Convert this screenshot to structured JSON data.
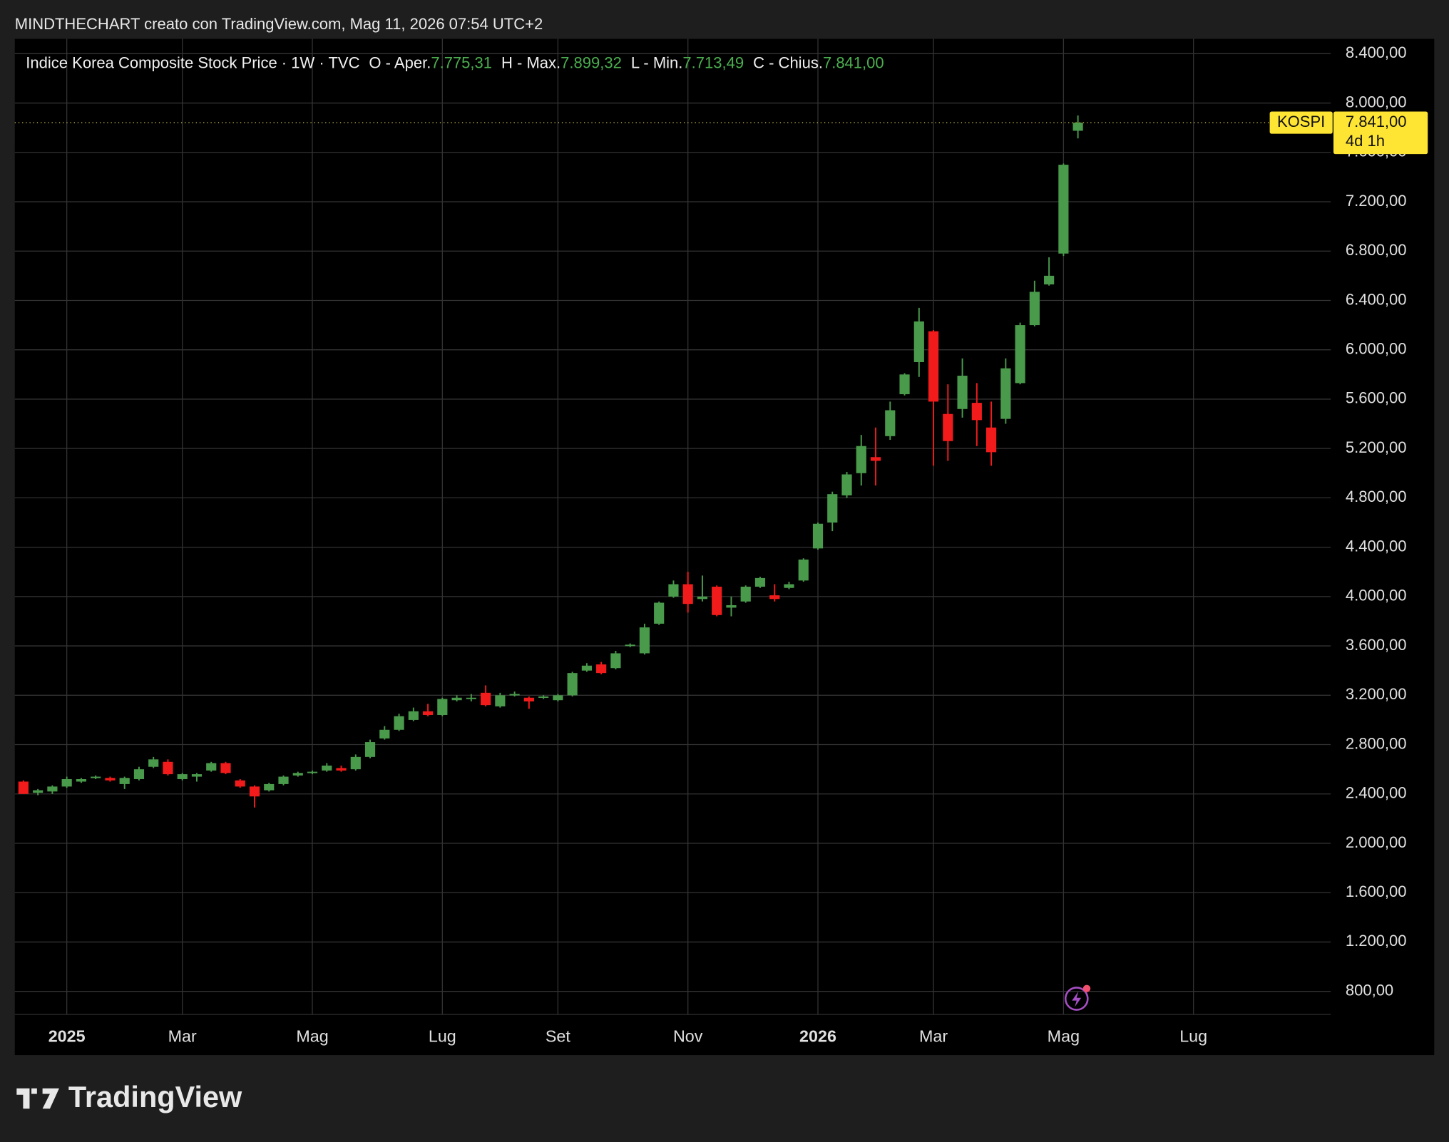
{
  "header": {
    "attribution": "MINDTHECHART creato con TradingView.com, Mag 11, 2026 07:54 UTC+2"
  },
  "footer": {
    "brand": "TradingView"
  },
  "chart_data": {
    "type": "candlestick",
    "title": "Indice Korea Composite Stock Price · 1W · TVC",
    "ohlc_names": [
      "O - Aper.",
      "H - Max.",
      "L - Min.",
      "C - Chius."
    ],
    "ohlc_value_labels": [
      "7.775,31",
      "7.899,32",
      "7.713,49",
      "7.841,00"
    ],
    "symbol": "KOSPI",
    "last_value_label": "7.841,00",
    "countdown": "4d 1h",
    "up_color": "#4a9a4c",
    "down_color": "#f21b1b",
    "open": [
      2500,
      2410,
      2420,
      2460,
      2500,
      2530,
      2530,
      2480,
      2520,
      2620,
      2660,
      2520,
      2540,
      2590,
      2650,
      2510,
      2460,
      2430,
      2480,
      2550,
      2570,
      2590,
      2610,
      2600,
      2700,
      2850,
      2920,
      3000,
      3070,
      3040,
      3160,
      3170,
      3220,
      3110,
      3200,
      3180,
      3180,
      3160,
      3200,
      3400,
      3450,
      3420,
      3600,
      3540,
      3780,
      4000,
      4100,
      3980,
      4080,
      3910,
      3960,
      4080,
      4010,
      4070,
      4130,
      4390,
      4600,
      4820,
      5000,
      5130,
      5300,
      5640,
      5900,
      6150,
      5480,
      5520,
      5570,
      5370,
      5440,
      5730,
      6200,
      6530,
      6780,
      7775.31
    ],
    "high": [
      2510,
      2440,
      2470,
      2540,
      2530,
      2550,
      2540,
      2540,
      2620,
      2700,
      2680,
      2570,
      2570,
      2660,
      2660,
      2520,
      2470,
      2490,
      2550,
      2580,
      2590,
      2650,
      2630,
      2720,
      2840,
      2950,
      3050,
      3100,
      3130,
      3180,
      3200,
      3210,
      3280,
      3220,
      3230,
      3190,
      3200,
      3210,
      3390,
      3460,
      3470,
      3560,
      3620,
      3780,
      3960,
      4130,
      4200,
      4170,
      4090,
      4000,
      4090,
      4160,
      4100,
      4120,
      4310,
      4600,
      4850,
      5010,
      5310,
      5370,
      5580,
      5810,
      6340,
      6160,
      5720,
      5930,
      5730,
      5580,
      5930,
      6220,
      6560,
      6750,
      7510,
      7899.32
    ],
    "low": [
      2400,
      2390,
      2400,
      2450,
      2490,
      2520,
      2500,
      2440,
      2510,
      2610,
      2550,
      2510,
      2500,
      2580,
      2560,
      2450,
      2290,
      2420,
      2470,
      2540,
      2560,
      2580,
      2580,
      2590,
      2690,
      2840,
      2910,
      2990,
      3030,
      3030,
      3150,
      3150,
      3110,
      3100,
      3190,
      3090,
      3170,
      3150,
      3190,
      3390,
      3370,
      3410,
      3590,
      3530,
      3770,
      3990,
      3870,
      3960,
      3840,
      3840,
      3950,
      4070,
      3960,
      4060,
      4120,
      4380,
      4530,
      4800,
      4900,
      4900,
      5270,
      5630,
      5780,
      5060,
      5100,
      5450,
      5220,
      5060,
      5400,
      5720,
      6190,
      6520,
      6760,
      7713.49
    ],
    "close": [
      2400,
      2430,
      2460,
      2520,
      2520,
      2540,
      2510,
      2530,
      2600,
      2680,
      2560,
      2560,
      2560,
      2650,
      2570,
      2460,
      2380,
      2480,
      2540,
      2570,
      2580,
      2630,
      2590,
      2700,
      2820,
      2920,
      3030,
      3070,
      3040,
      3170,
      3180,
      3180,
      3120,
      3200,
      3210,
      3150,
      3190,
      3200,
      3380,
      3440,
      3380,
      3540,
      3610,
      3750,
      3950,
      4100,
      3940,
      4000,
      3850,
      3930,
      4080,
      4150,
      3980,
      4100,
      4300,
      4590,
      4830,
      4990,
      5220,
      5100,
      5510,
      5800,
      6230,
      5580,
      5260,
      5790,
      5430,
      5170,
      5850,
      6200,
      6470,
      6600,
      7500,
      7841.0
    ],
    "xlim": [
      -0.6,
      90.5
    ],
    "xticks": [
      {
        "value": 3,
        "label": "2025"
      },
      {
        "value": 11,
        "label": "Mar"
      },
      {
        "value": 20,
        "label": "Mag"
      },
      {
        "value": 29,
        "label": "Lug"
      },
      {
        "value": 37,
        "label": "Set"
      },
      {
        "value": 46,
        "label": "Nov"
      },
      {
        "value": 55,
        "label": "2026"
      },
      {
        "value": 63,
        "label": "Mar"
      },
      {
        "value": 72,
        "label": "Mag"
      },
      {
        "value": 81,
        "label": "Lug"
      }
    ],
    "ylim": [
      613,
      8520
    ],
    "yticks": [
      {
        "value": 800,
        "label": "800,00"
      },
      {
        "value": 1200,
        "label": "1.200,00"
      },
      {
        "value": 1600,
        "label": "1.600,00"
      },
      {
        "value": 2000,
        "label": "2.000,00"
      },
      {
        "value": 2400,
        "label": "2.400,00"
      },
      {
        "value": 2800,
        "label": "2.800,00"
      },
      {
        "value": 3200,
        "label": "3.200,00"
      },
      {
        "value": 3600,
        "label": "3.600,00"
      },
      {
        "value": 4000,
        "label": "4.000,00"
      },
      {
        "value": 4400,
        "label": "4.400,00"
      },
      {
        "value": 4800,
        "label": "4.800,00"
      },
      {
        "value": 5200,
        "label": "5.200,00"
      },
      {
        "value": 5600,
        "label": "5.600,00"
      },
      {
        "value": 6000,
        "label": "6.000,00"
      },
      {
        "value": 6400,
        "label": "6.400,00"
      },
      {
        "value": 6800,
        "label": "6.800,00"
      },
      {
        "value": 7200,
        "label": "7.200,00"
      },
      {
        "value": 7600,
        "label": "7.600,00"
      },
      {
        "value": 8000,
        "label": "8.000,00"
      },
      {
        "value": 8400,
        "label": "8.400,00"
      }
    ],
    "grid": true
  }
}
